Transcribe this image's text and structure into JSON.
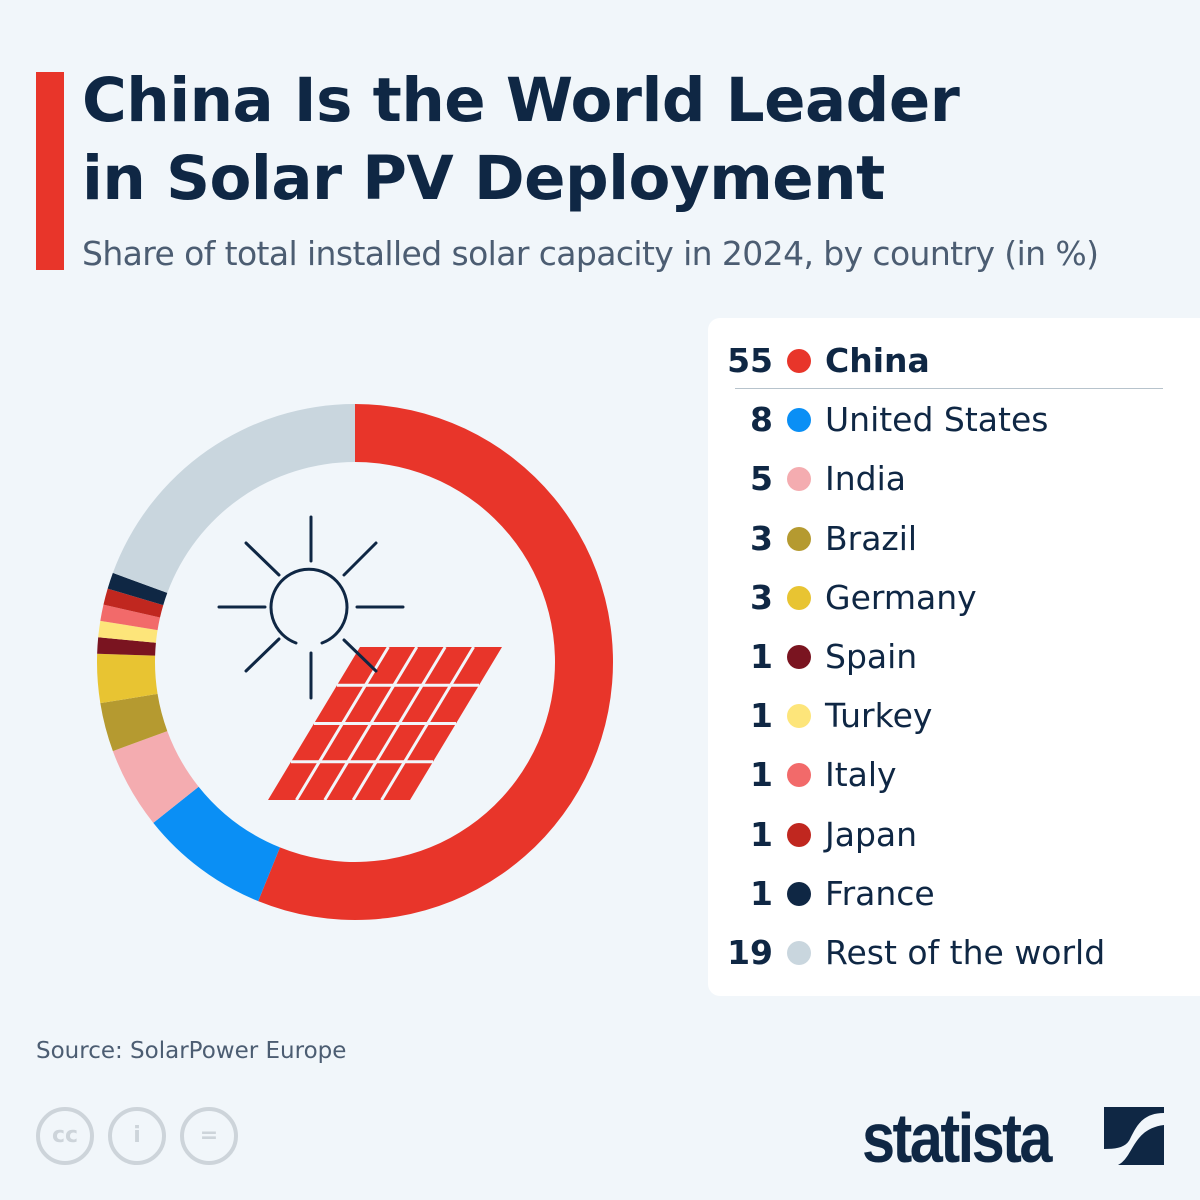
{
  "header": {
    "title_line1": "China Is the World Leader",
    "title_line2": "in Solar PV Deployment",
    "subtitle": "Share of total installed solar capacity in 2024, by country (in %)"
  },
  "chart_data": {
    "type": "pie",
    "donut": true,
    "title": "China Is the World Leader in Solar PV Deployment",
    "subtitle": "Share of total installed solar capacity in 2024, by country (in %)",
    "categories": [
      "China",
      "United States",
      "India",
      "Brazil",
      "Germany",
      "Spain",
      "Turkey",
      "Italy",
      "Japan",
      "France",
      "Rest of the world"
    ],
    "values": [
      55,
      8,
      5,
      3,
      3,
      1,
      1,
      1,
      1,
      1,
      19
    ],
    "colors": [
      "#e8352a",
      "#0a8ff5",
      "#f4acb0",
      "#b59a30",
      "#e8c432",
      "#7a1420",
      "#fde57a",
      "#f26a6a",
      "#c0271f",
      "#0f2744",
      "#c9d6de"
    ],
    "legend_placement": "right",
    "center_icon": "sun-and-solar-panel-icon"
  },
  "footer": {
    "source": "Source: SolarPower Europe",
    "brand": "statista",
    "license_icons": [
      "cc-icon",
      "attribution-icon",
      "no-derivatives-icon"
    ]
  }
}
